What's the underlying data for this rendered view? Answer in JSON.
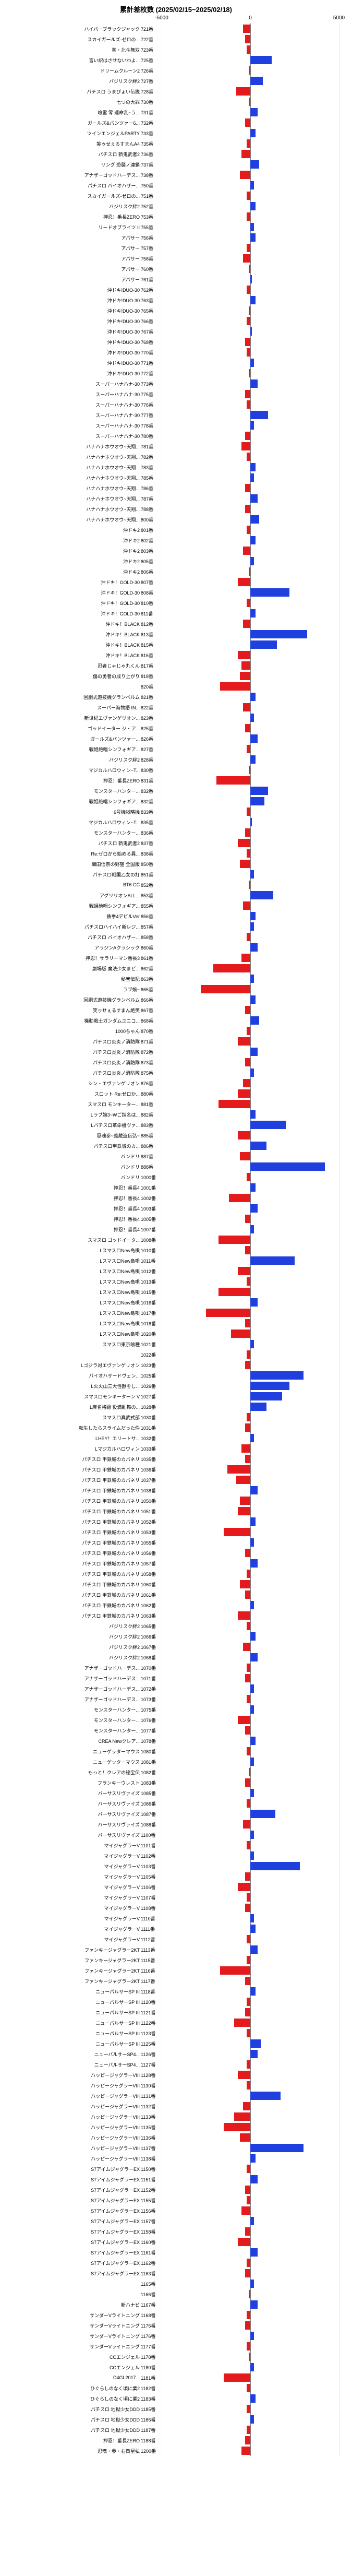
{
  "title": "累計差枚数 (2025/02/15~2025/02/18)",
  "axis": {
    "min": -5000,
    "max": 5000,
    "ticks": [
      -5000,
      0,
      5000
    ],
    "tick_labels": [
      "-5000",
      "0",
      "5000"
    ]
  },
  "bar_colors": {
    "positive": "#1f3fde",
    "negative": "#e41a1c"
  },
  "label_suffix": "番",
  "rows": [
    {
      "label": "ハイパーブラックジャック",
      "num": "721",
      "value": -400
    },
    {
      "label": "スカイガールズ-ゼロの...",
      "num": "722",
      "value": -300
    },
    {
      "label": "真・北斗無双",
      "num": "723",
      "value": -200
    },
    {
      "label": "言い訳はさせないわよ...",
      "num": "725",
      "value": 1200
    },
    {
      "label": "ドリームクルーン2",
      "num": "726",
      "value": -100
    },
    {
      "label": "バジリスク絆2",
      "num": "727",
      "value": 700
    },
    {
      "label": "パチスロ うまぴょい伝説",
      "num": "728",
      "value": -800
    },
    {
      "label": "七つの大罪",
      "num": "730",
      "value": -100
    },
    {
      "label": "喰霊 零 運命乱~う...",
      "num": "731",
      "value": 400
    },
    {
      "label": "ガールズ&パンツァー6...",
      "num": "732",
      "value": -300
    },
    {
      "label": "ツインエンジェルPARTY",
      "num": "733",
      "value": 300
    },
    {
      "label": "笑ゥせぇるすまんA4",
      "num": "735",
      "value": -200
    },
    {
      "label": "パチスロ 新鬼武者2",
      "num": "736",
      "value": -500
    },
    {
      "label": "リング 恐襲ノ連鎖",
      "num": "737",
      "value": 500
    },
    {
      "label": "アナザーゴッドハーデス...",
      "num": "738",
      "value": -600
    },
    {
      "label": "パチスロ バイオハザー...",
      "num": "750",
      "value": 200
    },
    {
      "label": "スカイガールズ-ゼロの...",
      "num": "751",
      "value": -200
    },
    {
      "label": "バジリスク絆2",
      "num": "752",
      "value": 300
    },
    {
      "label": "押忍！番長ZERO",
      "num": "753",
      "value": -200
    },
    {
      "label": "リードオブライツ II",
      "num": "755",
      "value": 200
    },
    {
      "label": "アバサー",
      "num": "756",
      "value": 300
    },
    {
      "label": "アバサー",
      "num": "757",
      "value": -200
    },
    {
      "label": "アバサー",
      "num": "758",
      "value": -400
    },
    {
      "label": "アバサー",
      "num": "760",
      "value": -100
    },
    {
      "label": "アバサー",
      "num": "761",
      "value": 100
    },
    {
      "label": "沖ドキ!DUO-30",
      "num": "762",
      "value": -200
    },
    {
      "label": "沖ドキ!DUO-30",
      "num": "763",
      "value": 300
    },
    {
      "label": "沖ドキ!DUO-30",
      "num": "765",
      "value": -100
    },
    {
      "label": "沖ドキ!DUO-30",
      "num": "766",
      "value": -200
    },
    {
      "label": "沖ドキ!DUO-30",
      "num": "767",
      "value": 100
    },
    {
      "label": "沖ドキ!DUO-30",
      "num": "768",
      "value": -300
    },
    {
      "label": "沖ドキ!DUO-30",
      "num": "770",
      "value": -200
    },
    {
      "label": "沖ドキ!DUO-30",
      "num": "771",
      "value": 200
    },
    {
      "label": "沖ドキ!DUO-30",
      "num": "772",
      "value": -100
    },
    {
      "label": "スーパーハナハナ-30",
      "num": "773",
      "value": 400
    },
    {
      "label": "スーパーハナハナ-30",
      "num": "775",
      "value": -300
    },
    {
      "label": "スーパーハナハナ-30",
      "num": "776",
      "value": -200
    },
    {
      "label": "スーパーハナハナ-30",
      "num": "777",
      "value": 1000
    },
    {
      "label": "スーパーハナハナ-30",
      "num": "778",
      "value": 200
    },
    {
      "label": "スーパーハナハナ-30",
      "num": "780",
      "value": -300
    },
    {
      "label": "ハナハナホウオウ~天翔...",
      "num": "781",
      "value": -500
    },
    {
      "label": "ハナハナホウオウ~天翔...",
      "num": "782",
      "value": -200
    },
    {
      "label": "ハナハナホウオウ~天翔...",
      "num": "783",
      "value": 300
    },
    {
      "label": "ハナハナホウオウ~天翔...",
      "num": "785",
      "value": 200
    },
    {
      "label": "ハナハナホウオウ~天翔...",
      "num": "786",
      "value": -300
    },
    {
      "label": "ハナハナホウオウ~天翔...",
      "num": "787",
      "value": 400
    },
    {
      "label": "ハナハナホウオウ~天翔...",
      "num": "788",
      "value": -300
    },
    {
      "label": "ハナハナホウオウ~天翔...",
      "num": "800",
      "value": 500
    },
    {
      "label": "沖ドキ2",
      "num": "801",
      "value": -200
    },
    {
      "label": "沖ドキ2",
      "num": "802",
      "value": 300
    },
    {
      "label": "沖ドキ2",
      "num": "803",
      "value": -400
    },
    {
      "label": "沖ドキ2",
      "num": "805",
      "value": 200
    },
    {
      "label": "沖ドキ2",
      "num": "806",
      "value": -100
    },
    {
      "label": "沖ドキ！GOLD-30",
      "num": "807",
      "value": -700
    },
    {
      "label": "沖ドキ！GOLD-30",
      "num": "808",
      "value": 2200
    },
    {
      "label": "沖ドキ！GOLD-30",
      "num": "810",
      "value": -200
    },
    {
      "label": "沖ドキ！GOLD-30",
      "num": "811",
      "value": 300
    },
    {
      "label": "沖ドキ！BLACK",
      "num": "812",
      "value": -400
    },
    {
      "label": "沖ドキ！BLACK",
      "num": "813",
      "value": 3200
    },
    {
      "label": "沖ドキ！BLACK",
      "num": "815",
      "value": 1500
    },
    {
      "label": "沖ドキ！BLACK",
      "num": "816",
      "value": -700
    },
    {
      "label": "忍者じゃじゃ丸くん",
      "num": "817",
      "value": -500
    },
    {
      "label": "傷の勇者の成り上がり",
      "num": "818",
      "value": -600
    },
    {
      "label": "",
      "num": "820",
      "value": -1700
    },
    {
      "label": "回胴式遊技機グランベルム",
      "num": "821",
      "value": 300
    },
    {
      "label": "スーパー海物語 IN...",
      "num": "822",
      "value": -400
    },
    {
      "label": "新世紀エヴァンゲリオン...",
      "num": "823",
      "value": 200
    },
    {
      "label": "ゴッドイーター ジ・ア...",
      "num": "825",
      "value": -300
    },
    {
      "label": "ガールズ&パンツァー...",
      "num": "826",
      "value": 400
    },
    {
      "label": "戦姫絶唱シンフォギア...",
      "num": "827",
      "value": -200
    },
    {
      "label": "バジリスク絆2",
      "num": "828",
      "value": 300
    },
    {
      "label": "マジカルハロウィン~T...",
      "num": "830",
      "value": -100
    },
    {
      "label": "押忍！番長ZERO",
      "num": "831",
      "value": -1900
    },
    {
      "label": "モンスターハンター...",
      "num": "832",
      "value": 1000
    },
    {
      "label": "戦姫絶唱シンフォギア...",
      "num": "832",
      "value": 800
    },
    {
      "label": "6号機戦略機",
      "num": "833",
      "value": -200
    },
    {
      "label": "マジカルハロウィン~T...",
      "num": "835",
      "value": 100
    },
    {
      "label": "モンスターハンター...",
      "num": "836",
      "value": -300
    },
    {
      "label": "パチスロ 新鬼武者2",
      "num": "837",
      "value": -700
    },
    {
      "label": "Re:ゼロから始める異...",
      "num": "838",
      "value": -200
    },
    {
      "label": "織田信奈の野望 全国版",
      "num": "850",
      "value": -600
    },
    {
      "label": "パチスロ戦国乙女の打",
      "num": "851",
      "value": 200
    },
    {
      "label": "BT6 CC",
      "num": "852",
      "value": -100
    },
    {
      "label": "アグリリオンALL...",
      "num": "853",
      "value": 1300
    },
    {
      "label": "戦姫絶唱シンフォギア...",
      "num": "855",
      "value": -400
    },
    {
      "label": "鉄拳4デビルVer",
      "num": "856",
      "value": 300
    },
    {
      "label": "パチスロハイハイ新レジ...",
      "num": "857",
      "value": 200
    },
    {
      "label": "パチスロ バイオハザー...",
      "num": "858",
      "value": -200
    },
    {
      "label": "アラジンAクラシック",
      "num": "860",
      "value": 400
    },
    {
      "label": "押忍！サラリーマン番長3",
      "num": "861",
      "value": -500
    },
    {
      "label": "劇場版 魔法少女まど...",
      "num": "862",
      "value": -2100
    },
    {
      "label": "秘宝伝記",
      "num": "863",
      "value": 200
    },
    {
      "label": "ラブ嬢~",
      "num": "865",
      "value": -2800
    },
    {
      "label": "回胴式遊技機グランベルム",
      "num": "866",
      "value": 300
    },
    {
      "label": "笑ゥせぇるすまん絶笑",
      "num": "867",
      "value": -300
    },
    {
      "label": "機動戦士ガンダムユニコ...",
      "num": "868",
      "value": 500
    },
    {
      "label": "1000ちゃん",
      "num": "870",
      "value": -200
    },
    {
      "label": "パチスロ炎炎ノ消防隊",
      "num": "871",
      "value": -700
    },
    {
      "label": "パチスロ炎炎ノ消防隊",
      "num": "872",
      "value": 400
    },
    {
      "label": "パチスロ炎炎ノ消防隊",
      "num": "873",
      "value": -300
    },
    {
      "label": "パチスロ炎炎ノ消防隊",
      "num": "875",
      "value": 200
    },
    {
      "label": "シン・エヴァンゲリオン",
      "num": "876",
      "value": -400
    },
    {
      "label": "スロット Re:ゼロか...",
      "num": "880",
      "value": -700
    },
    {
      "label": "スマスロ モンキーター...",
      "num": "881",
      "value": -1800
    },
    {
      "label": "Lラブ嬢3~Wご指名は...",
      "num": "882",
      "value": 300
    },
    {
      "label": "Lパチスロ革命機ヴァ...",
      "num": "883",
      "value": 2000
    },
    {
      "label": "忍魂参~義蔵盗伝弘~",
      "num": "885",
      "value": -700
    },
    {
      "label": "パチスロ甲鉄城のカ...",
      "num": "886",
      "value": 900
    },
    {
      "label": "バンドリ",
      "num": "887",
      "value": -600
    },
    {
      "label": "バンドリ",
      "num": "888",
      "value": 4200
    },
    {
      "label": "バンドリ",
      "num": "1000",
      "value": -200
    },
    {
      "label": "押忍！番長4",
      "num": "1001",
      "value": 300
    },
    {
      "label": "押忍！番長4",
      "num": "1002",
      "value": -1200
    },
    {
      "label": "押忍！番長4",
      "num": "1003",
      "value": 400
    },
    {
      "label": "押忍！番長4",
      "num": "1005",
      "value": -300
    },
    {
      "label": "押忍！番長4",
      "num": "1007",
      "value": 200
    },
    {
      "label": "スマスロ ゴッドイータ...",
      "num": "1008",
      "value": -1800
    },
    {
      "label": "LスマスロNew島唄",
      "num": "1010",
      "value": -300
    },
    {
      "label": "LスマスロNew島唄",
      "num": "1011",
      "value": 2500
    },
    {
      "label": "LスマスロNew島唄",
      "num": "1012",
      "value": -700
    },
    {
      "label": "LスマスロNew島唄",
      "num": "1013",
      "value": -200
    },
    {
      "label": "LスマスロNew島唄",
      "num": "1015",
      "value": -1800
    },
    {
      "label": "LスマスロNew島唄",
      "num": "1016",
      "value": 400
    },
    {
      "label": "LスマスロNew島唄",
      "num": "1017",
      "value": -2500
    },
    {
      "label": "LスマスロNew島唄",
      "num": "1018",
      "value": -300
    },
    {
      "label": "LスマスロNew島唄",
      "num": "1020",
      "value": -1100
    },
    {
      "label": "スマスロ東京喰種",
      "num": "1021",
      "value": 200
    },
    {
      "label": "",
      "num": "1022",
      "value": -200
    },
    {
      "label": "Lゴジラ対エヴァンゲリオン",
      "num": "1023",
      "value": -300
    },
    {
      "label": "パイオハザードヴェン...",
      "num": "1025",
      "value": 3000
    },
    {
      "label": "L火火山三大怪獣をし...",
      "num": "1026",
      "value": 2200
    },
    {
      "label": "スマスロモンキーターン V",
      "num": "1027",
      "value": 1800
    },
    {
      "label": "L麻雀格闘 役満乱舞の...",
      "num": "1028",
      "value": 900
    },
    {
      "label": "スマスロ真武式部",
      "num": "1030",
      "value": -200
    },
    {
      "label": "転生したらスライムだった件",
      "num": "1031",
      "value": -300
    },
    {
      "label": "LHEY！エリートサ...",
      "num": "1032",
      "value": 200
    },
    {
      "label": "Lマジカルハロウィン",
      "num": "1033",
      "value": -500
    },
    {
      "label": "パチスロ 甲鉄城のカバネリ",
      "num": "1035",
      "value": -300
    },
    {
      "label": "パチスロ 甲鉄城のカバネリ",
      "num": "1036",
      "value": -1300
    },
    {
      "label": "パチスロ 甲鉄城のカバネリ",
      "num": "1037",
      "value": -800
    },
    {
      "label": "パチスロ 甲鉄城のカバネリ",
      "num": "1038",
      "value": 400
    },
    {
      "label": "パチスロ 甲鉄城のカバネリ",
      "num": "1050",
      "value": -600
    },
    {
      "label": "パチスロ 甲鉄城のカバネリ",
      "num": "1051",
      "value": -700
    },
    {
      "label": "パチスロ 甲鉄城のカバネリ",
      "num": "1052",
      "value": 300
    },
    {
      "label": "パチスロ 甲鉄城のカバネリ",
      "num": "1053",
      "value": -1500
    },
    {
      "label": "パチスロ 甲鉄城のカバネリ",
      "num": "1055",
      "value": 200
    },
    {
      "label": "パチスロ 甲鉄城のカバネリ",
      "num": "1056",
      "value": -300
    },
    {
      "label": "パチスロ 甲鉄城のカバネリ",
      "num": "1057",
      "value": 400
    },
    {
      "label": "パチスロ 甲鉄城のカバネリ",
      "num": "1058",
      "value": -200
    },
    {
      "label": "パチスロ 甲鉄城のカバネリ",
      "num": "1060",
      "value": -600
    },
    {
      "label": "パチスロ 甲鉄城のカバネリ",
      "num": "1061",
      "value": -300
    },
    {
      "label": "パチスロ 甲鉄城のカバネリ",
      "num": "1062",
      "value": 200
    },
    {
      "label": "パチスロ 甲鉄城のカバネリ",
      "num": "1063",
      "value": -700
    },
    {
      "label": "バジリスク絆2",
      "num": "1065",
      "value": -200
    },
    {
      "label": "バジリスク絆2",
      "num": "1066",
      "value": 300
    },
    {
      "label": "バジリスク絆2",
      "num": "1067",
      "value": -400
    },
    {
      "label": "バジリスク絆2",
      "num": "1068",
      "value": 400
    },
    {
      "label": "アナザーゴッドハーデス...",
      "num": "1070",
      "value": -200
    },
    {
      "label": "アナザーゴッドハーデス...",
      "num": "1071",
      "value": -300
    },
    {
      "label": "アナザーゴッドハーデス...",
      "num": "1072",
      "value": 200
    },
    {
      "label": "アナザーゴッドハーデス...",
      "num": "1073",
      "value": -200
    },
    {
      "label": "モンスターハンター...",
      "num": "1075",
      "value": 200
    },
    {
      "label": "モンスターハンター...",
      "num": "1076",
      "value": -700
    },
    {
      "label": "モンスターハンター...",
      "num": "1077",
      "value": -300
    },
    {
      "label": "CREA Newクレア...",
      "num": "1078",
      "value": 300
    },
    {
      "label": "ニューゲッターマウス",
      "num": "1080",
      "value": -200
    },
    {
      "label": "ニューゲッターマウス",
      "num": "1081",
      "value": 200
    },
    {
      "label": "もっと！クレアの秘宝伝",
      "num": "1082",
      "value": -100
    },
    {
      "label": "フランキーウレスト",
      "num": "1083",
      "value": -300
    },
    {
      "label": "バーサスリヴァイズ",
      "num": "1085",
      "value": 200
    },
    {
      "label": "バーサスリヴァイズ",
      "num": "1086",
      "value": -200
    },
    {
      "label": "バーサスリヴァイズ",
      "num": "1087",
      "value": 1400
    },
    {
      "label": "バーサスリヴァイズ",
      "num": "1088",
      "value": -400
    },
    {
      "label": "バーサスリヴァイズ",
      "num": "1100",
      "value": 200
    },
    {
      "label": "マイジャグラーV",
      "num": "1101",
      "value": -200
    },
    {
      "label": "マイジャグラーV",
      "num": "1102",
      "value": 200
    },
    {
      "label": "マイジャグラーV",
      "num": "1103",
      "value": 2800
    },
    {
      "label": "マイジャグラーV",
      "num": "1105",
      "value": -300
    },
    {
      "label": "マイジャグラーV",
      "num": "1106",
      "value": -700
    },
    {
      "label": "マイジャグラーV",
      "num": "1107",
      "value": -200
    },
    {
      "label": "マイジャグラーV",
      "num": "1108",
      "value": -300
    },
    {
      "label": "マイジャグラーV",
      "num": "1110",
      "value": 200
    },
    {
      "label": "マイジャグラーV",
      "num": "1111",
      "value": 300
    },
    {
      "label": "マイジャグラーV",
      "num": "1112",
      "value": -200
    },
    {
      "label": "ファンキージャグラー2KT",
      "num": "1113",
      "value": 400
    },
    {
      "label": "ファンキージャグラー2KT",
      "num": "1115",
      "value": -200
    },
    {
      "label": "ファンキージャグラー2KT",
      "num": "1116",
      "value": -1700
    },
    {
      "label": "ファンキージャグラー2KT",
      "num": "1117",
      "value": -300
    },
    {
      "label": "ニューパルサーSP III",
      "num": "1118",
      "value": 300
    },
    {
      "label": "ニューパルサーSP III",
      "num": "1120",
      "value": -200
    },
    {
      "label": "ニューパルサーSP III",
      "num": "1121",
      "value": -300
    },
    {
      "label": "ニューパルサーSP III",
      "num": "1122",
      "value": -900
    },
    {
      "label": "ニューパルサーSP III",
      "num": "1123",
      "value": -200
    },
    {
      "label": "ニューパルサーSP III",
      "num": "1125",
      "value": 600
    },
    {
      "label": "ニューバルサーSP4...",
      "num": "1126",
      "value": 400
    },
    {
      "label": "ニューバルサーSP4...",
      "num": "1127",
      "value": -200
    },
    {
      "label": "ハッピージャグラーVIII",
      "num": "1128",
      "value": -700
    },
    {
      "label": "ハッピージャグラーVIII",
      "num": "1130",
      "value": -200
    },
    {
      "label": "ハッピージャグラーVIII",
      "num": "1131",
      "value": 1700
    },
    {
      "label": "ハッピージャグラーVIII",
      "num": "1132",
      "value": -400
    },
    {
      "label": "ハッピージャグラーVIII",
      "num": "1133",
      "value": -900
    },
    {
      "label": "ハッピージャグラーVIII",
      "num": "1135",
      "value": -1500
    },
    {
      "label": "ハッピージャグラーVIII",
      "num": "1136",
      "value": -600
    },
    {
      "label": "ハッピージャグラーVIII",
      "num": "1137",
      "value": 3000
    },
    {
      "label": "ハッピージャグラーVIII",
      "num": "1138",
      "value": 300
    },
    {
      "label": "S7アイムジャグラーEX",
      "num": "1150",
      "value": -200
    },
    {
      "label": "S7アイムジャグラーEX",
      "num": "1151",
      "value": 400
    },
    {
      "label": "S7アイムジャグラーEX",
      "num": "1152",
      "value": -300
    },
    {
      "label": "S7アイムジャグラーEX",
      "num": "1155",
      "value": -200
    },
    {
      "label": "S7アイムジャグラーEX",
      "num": "1156",
      "value": -500
    },
    {
      "label": "S7アイムジャグラーEX",
      "num": "1157",
      "value": 200
    },
    {
      "label": "S7アイムジャグラーEX",
      "num": "1158",
      "value": -300
    },
    {
      "label": "S7アイムジャグラーEX",
      "num": "1160",
      "value": -700
    },
    {
      "label": "S7アイムジャグラーEX",
      "num": "1161",
      "value": 400
    },
    {
      "label": "S7アイムジャグラーEX",
      "num": "1162",
      "value": -200
    },
    {
      "label": "S7アイムジャグラーEX",
      "num": "1163",
      "value": -300
    },
    {
      "label": "",
      "num": "1165",
      "value": 200
    },
    {
      "label": "",
      "num": "1166",
      "value": -100
    },
    {
      "label": "新ハナビ",
      "num": "1167",
      "value": 400
    },
    {
      "label": "サンダーVライトニング",
      "num": "1168",
      "value": -200
    },
    {
      "label": "サンダーVライトニング",
      "num": "1175",
      "value": -300
    },
    {
      "label": "サンダーVライトニング",
      "num": "1176",
      "value": 200
    },
    {
      "label": "サンダーVライトニング",
      "num": "1177",
      "value": -200
    },
    {
      "label": "CCエンジェル",
      "num": "1178",
      "value": -100
    },
    {
      "label": "CCエンジェル",
      "num": "1180",
      "value": 200
    },
    {
      "label": "D4GL2017...",
      "num": "1181",
      "value": -1500
    },
    {
      "label": "ひぐらしのなく頃に業2",
      "num": "1182",
      "value": -200
    },
    {
      "label": "ひぐらしのなく頃に業2",
      "num": "1183",
      "value": 300
    },
    {
      "label": "パチスロ 地獄少女DDD",
      "num": "1185",
      "value": -200
    },
    {
      "label": "パチスロ 地獄少女DDD",
      "num": "1186",
      "value": 200
    },
    {
      "label": "パチスロ 地獄少女DDD",
      "num": "1187",
      "value": -200
    },
    {
      "label": "押忍！番長ZERO",
      "num": "1188",
      "value": -300
    },
    {
      "label": "忍魂・参・右衛星弘",
      "num": "1200",
      "value": -500
    }
  ]
}
